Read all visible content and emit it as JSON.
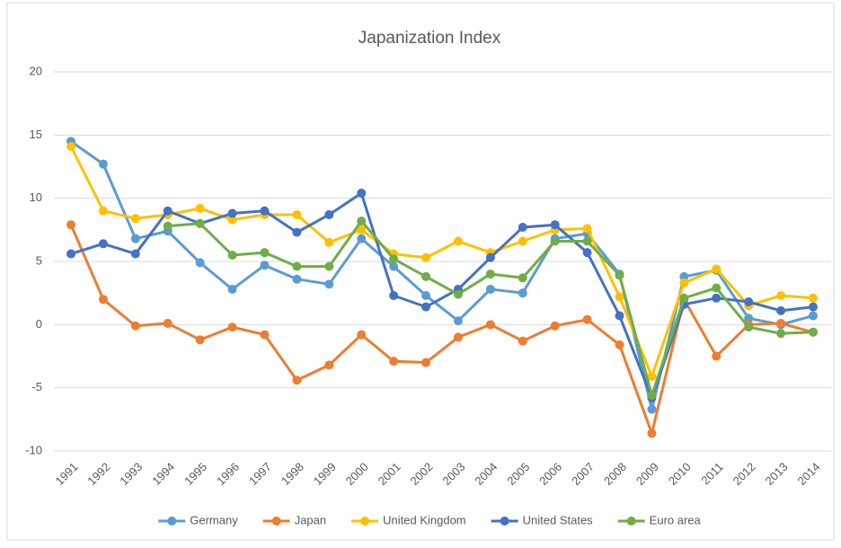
{
  "chart_data": {
    "type": "line",
    "title": "Japanization Index",
    "categories": [
      "1991",
      "1992",
      "1993",
      "1994",
      "1995",
      "1996",
      "1997",
      "1998",
      "1999",
      "2000",
      "2001",
      "2002",
      "2003",
      "2004",
      "2005",
      "2006",
      "2007",
      "2008",
      "2009",
      "2010",
      "2011",
      "2012",
      "2013",
      "2014"
    ],
    "series": [
      {
        "name": "Germany",
        "color": "#5b9bd5",
        "values": [
          14.5,
          12.7,
          6.8,
          7.4,
          4.9,
          2.8,
          4.7,
          3.6,
          3.2,
          6.8,
          4.6,
          2.3,
          0.3,
          2.8,
          2.5,
          6.8,
          7.2,
          4.0,
          -6.7,
          3.8,
          4.3,
          0.5,
          0.0,
          0.7
        ]
      },
      {
        "name": "Japan",
        "color": "#ed7d31",
        "values": [
          7.9,
          2.0,
          -0.1,
          0.1,
          -1.2,
          -0.2,
          -0.8,
          -4.4,
          -3.2,
          -0.8,
          -2.9,
          -3.0,
          -1.0,
          0.0,
          -1.3,
          -0.1,
          0.4,
          -1.6,
          -8.6,
          2.0,
          -2.5,
          0.0,
          0.1,
          -0.6
        ]
      },
      {
        "name": "United Kingdom",
        "color": "#ffc000",
        "values": [
          14.1,
          9.0,
          8.4,
          8.7,
          9.2,
          8.3,
          8.7,
          8.7,
          6.5,
          7.5,
          5.6,
          5.3,
          6.6,
          5.7,
          6.6,
          7.5,
          7.6,
          2.2,
          -4.1,
          3.3,
          4.4,
          1.5,
          2.3,
          2.1
        ]
      },
      {
        "name": "United States",
        "color": "#4472c4",
        "values": [
          5.6,
          6.4,
          5.6,
          9.0,
          8.0,
          8.8,
          9.0,
          7.3,
          8.7,
          10.4,
          2.3,
          1.4,
          2.8,
          5.3,
          7.7,
          7.9,
          5.7,
          0.7,
          -5.8,
          1.6,
          2.1,
          1.8,
          1.1,
          1.4
        ]
      },
      {
        "name": "Euro area",
        "color": "#70ad47",
        "values": [
          null,
          null,
          null,
          7.8,
          8.0,
          5.5,
          5.7,
          4.6,
          4.6,
          8.2,
          5.2,
          3.8,
          2.4,
          4.0,
          3.7,
          6.6,
          6.6,
          3.9,
          -5.6,
          2.1,
          2.9,
          -0.2,
          -0.7,
          -0.6
        ]
      }
    ],
    "ylim": [
      -10,
      20
    ],
    "yticks": [
      -10,
      -5,
      0,
      5,
      10,
      15,
      20
    ],
    "grid": true,
    "legend": "bottom"
  }
}
